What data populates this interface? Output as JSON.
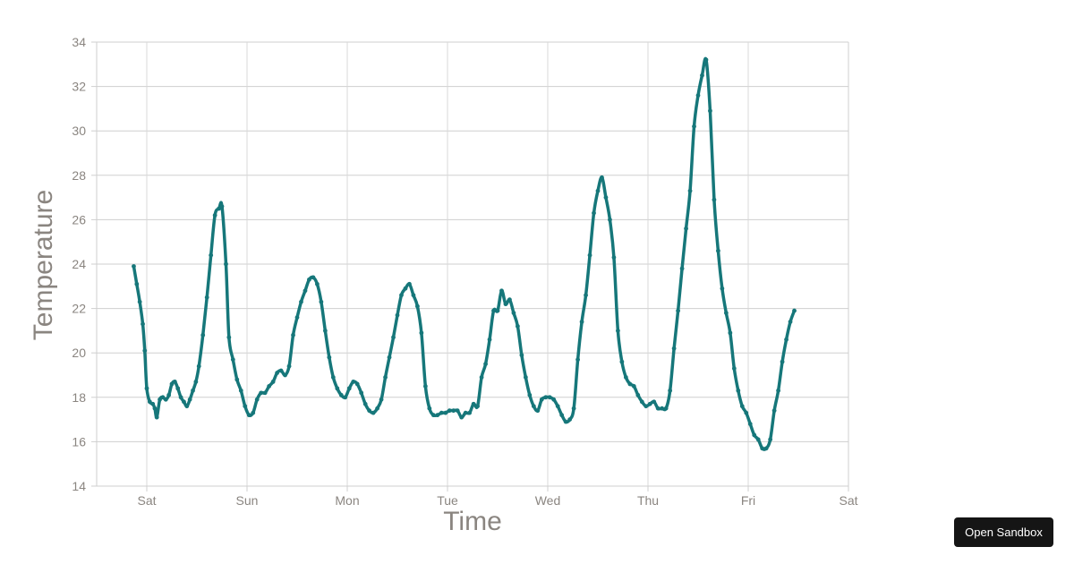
{
  "chart_data": {
    "type": "line",
    "xlabel": "Time",
    "ylabel": "Temperature",
    "ylim": [
      14,
      34
    ],
    "y_ticks": [
      "14",
      "16",
      "18",
      "20",
      "22",
      "24",
      "26",
      "28",
      "30",
      "32",
      "34"
    ],
    "x_ticks": [
      "Sat",
      "Sun",
      "Mon",
      "Tue",
      "Wed",
      "Thu",
      "Fri",
      "Sat"
    ],
    "grid": true,
    "line_color": "#16777a",
    "series": [
      {
        "name": "",
        "points": [
          [
            -0.13,
            23.9
          ],
          [
            -0.1,
            23.1
          ],
          [
            -0.07,
            22.3
          ],
          [
            -0.04,
            21.3
          ],
          [
            -0.02,
            20.1
          ],
          [
            0.0,
            18.4
          ],
          [
            0.03,
            17.8
          ],
          [
            0.06,
            17.7
          ],
          [
            0.08,
            17.5
          ],
          [
            0.1,
            17.1
          ],
          [
            0.13,
            17.9
          ],
          [
            0.16,
            18.0
          ],
          [
            0.19,
            17.9
          ],
          [
            0.22,
            18.1
          ],
          [
            0.25,
            18.6
          ],
          [
            0.28,
            18.7
          ],
          [
            0.31,
            18.4
          ],
          [
            0.34,
            18.0
          ],
          [
            0.37,
            17.8
          ],
          [
            0.4,
            17.6
          ],
          [
            0.43,
            17.9
          ],
          [
            0.46,
            18.3
          ],
          [
            0.49,
            18.7
          ],
          [
            0.52,
            19.4
          ],
          [
            0.56,
            20.8
          ],
          [
            0.6,
            22.5
          ],
          [
            0.64,
            24.4
          ],
          [
            0.68,
            26.2
          ],
          [
            0.72,
            26.5
          ],
          [
            0.75,
            26.6
          ],
          [
            0.79,
            24.0
          ],
          [
            0.82,
            20.7
          ],
          [
            0.86,
            19.7
          ],
          [
            0.9,
            18.8
          ],
          [
            0.94,
            18.3
          ],
          [
            0.98,
            17.6
          ],
          [
            1.02,
            17.2
          ],
          [
            1.06,
            17.3
          ],
          [
            1.1,
            17.9
          ],
          [
            1.14,
            18.2
          ],
          [
            1.18,
            18.2
          ],
          [
            1.22,
            18.5
          ],
          [
            1.26,
            18.7
          ],
          [
            1.3,
            19.1
          ],
          [
            1.34,
            19.2
          ],
          [
            1.38,
            19.0
          ],
          [
            1.42,
            19.4
          ],
          [
            1.46,
            20.8
          ],
          [
            1.5,
            21.6
          ],
          [
            1.54,
            22.3
          ],
          [
            1.58,
            22.8
          ],
          [
            1.62,
            23.3
          ],
          [
            1.66,
            23.4
          ],
          [
            1.7,
            23.1
          ],
          [
            1.74,
            22.3
          ],
          [
            1.78,
            21.0
          ],
          [
            1.82,
            19.8
          ],
          [
            1.86,
            18.9
          ],
          [
            1.9,
            18.4
          ],
          [
            1.94,
            18.1
          ],
          [
            1.98,
            18.0
          ],
          [
            2.02,
            18.4
          ],
          [
            2.06,
            18.7
          ],
          [
            2.1,
            18.6
          ],
          [
            2.14,
            18.2
          ],
          [
            2.18,
            17.7
          ],
          [
            2.22,
            17.4
          ],
          [
            2.26,
            17.3
          ],
          [
            2.3,
            17.5
          ],
          [
            2.34,
            17.9
          ],
          [
            2.38,
            18.9
          ],
          [
            2.42,
            19.8
          ],
          [
            2.46,
            20.7
          ],
          [
            2.5,
            21.7
          ],
          [
            2.54,
            22.6
          ],
          [
            2.58,
            22.9
          ],
          [
            2.62,
            23.1
          ],
          [
            2.66,
            22.6
          ],
          [
            2.7,
            22.1
          ],
          [
            2.74,
            20.9
          ],
          [
            2.78,
            18.5
          ],
          [
            2.82,
            17.5
          ],
          [
            2.86,
            17.2
          ],
          [
            2.9,
            17.2
          ],
          [
            2.94,
            17.3
          ],
          [
            2.98,
            17.3
          ],
          [
            3.02,
            17.4
          ],
          [
            3.06,
            17.4
          ],
          [
            3.1,
            17.4
          ],
          [
            3.14,
            17.1
          ],
          [
            3.18,
            17.3
          ],
          [
            3.22,
            17.3
          ],
          [
            3.26,
            17.7
          ],
          [
            3.3,
            17.6
          ],
          [
            3.34,
            18.9
          ],
          [
            3.38,
            19.5
          ],
          [
            3.42,
            20.6
          ],
          [
            3.46,
            21.9
          ],
          [
            3.5,
            21.9
          ],
          [
            3.54,
            22.8
          ],
          [
            3.58,
            22.2
          ],
          [
            3.62,
            22.4
          ],
          [
            3.66,
            21.8
          ],
          [
            3.7,
            21.2
          ],
          [
            3.74,
            19.9
          ],
          [
            3.78,
            18.9
          ],
          [
            3.82,
            18.1
          ],
          [
            3.86,
            17.6
          ],
          [
            3.9,
            17.4
          ],
          [
            3.94,
            17.9
          ],
          [
            3.98,
            18.0
          ],
          [
            4.02,
            18.0
          ],
          [
            4.06,
            17.9
          ],
          [
            4.1,
            17.6
          ],
          [
            4.14,
            17.2
          ],
          [
            4.18,
            16.9
          ],
          [
            4.22,
            17.0
          ],
          [
            4.26,
            17.5
          ],
          [
            4.3,
            19.7
          ],
          [
            4.34,
            21.4
          ],
          [
            4.38,
            22.6
          ],
          [
            4.42,
            24.4
          ],
          [
            4.46,
            26.3
          ],
          [
            4.5,
            27.3
          ],
          [
            4.54,
            27.9
          ],
          [
            4.58,
            27.0
          ],
          [
            4.62,
            26.0
          ],
          [
            4.66,
            24.3
          ],
          [
            4.7,
            21.0
          ],
          [
            4.74,
            19.6
          ],
          [
            4.78,
            18.9
          ],
          [
            4.82,
            18.6
          ],
          [
            4.86,
            18.5
          ],
          [
            4.9,
            18.1
          ],
          [
            4.94,
            17.8
          ],
          [
            4.98,
            17.6
          ],
          [
            5.02,
            17.7
          ],
          [
            5.06,
            17.8
          ],
          [
            5.1,
            17.5
          ],
          [
            5.14,
            17.5
          ],
          [
            5.18,
            17.5
          ],
          [
            5.22,
            18.3
          ],
          [
            5.26,
            20.2
          ],
          [
            5.3,
            21.9
          ],
          [
            5.34,
            23.8
          ],
          [
            5.38,
            25.6
          ],
          [
            5.42,
            27.3
          ],
          [
            5.46,
            30.2
          ],
          [
            5.5,
            31.6
          ],
          [
            5.54,
            32.5
          ],
          [
            5.58,
            33.2
          ],
          [
            5.62,
            30.9
          ],
          [
            5.66,
            26.9
          ],
          [
            5.7,
            24.6
          ],
          [
            5.74,
            22.9
          ],
          [
            5.78,
            21.8
          ],
          [
            5.82,
            20.9
          ],
          [
            5.86,
            19.3
          ],
          [
            5.9,
            18.3
          ],
          [
            5.94,
            17.6
          ],
          [
            5.98,
            17.3
          ],
          [
            6.02,
            16.8
          ],
          [
            6.06,
            16.3
          ],
          [
            6.1,
            16.1
          ],
          [
            6.14,
            15.7
          ],
          [
            6.18,
            15.7
          ],
          [
            6.22,
            16.1
          ],
          [
            6.26,
            17.4
          ],
          [
            6.3,
            18.3
          ],
          [
            6.34,
            19.6
          ],
          [
            6.38,
            20.6
          ],
          [
            6.42,
            21.4
          ],
          [
            6.46,
            21.9
          ]
        ]
      }
    ]
  },
  "sandbox_button": {
    "label": "Open Sandbox"
  }
}
